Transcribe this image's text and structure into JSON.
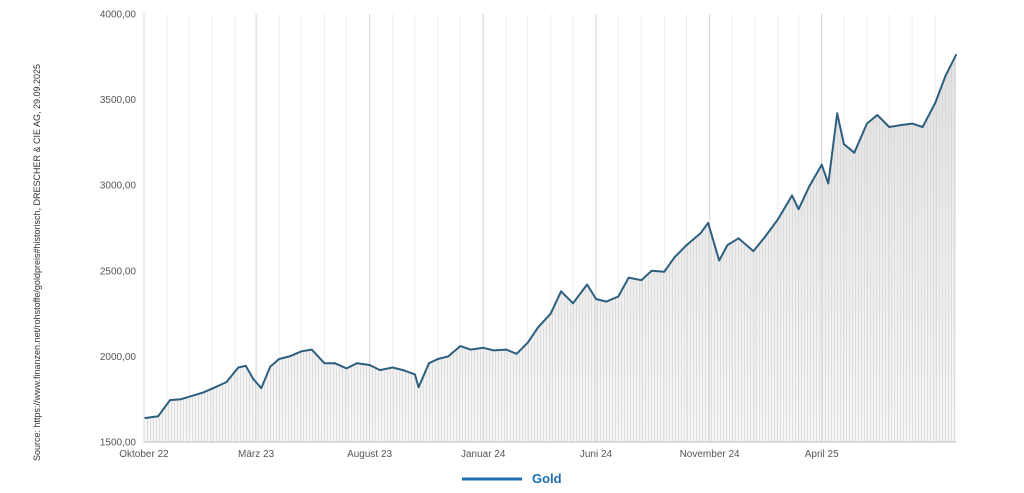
{
  "source_text": "Source: https://www.finanzen.net/rohstoffe/goldpreis#historisch, DRESCHER & CIE AG, 29.09.2025",
  "chart_data": {
    "type": "area",
    "x_start": "2022-10-01",
    "x_end": "2025-09-29",
    "ylim": [
      1500,
      4000
    ],
    "y_ticks": [
      {
        "value": 1500,
        "label": "1500,00"
      },
      {
        "value": 2000,
        "label": "2000,00"
      },
      {
        "value": 2500,
        "label": "2500,00"
      },
      {
        "value": 3000,
        "label": "3000,00"
      },
      {
        "value": 3500,
        "label": "3500,00"
      },
      {
        "value": 4000,
        "label": "4000,00"
      }
    ],
    "x_ticks": [
      {
        "date": "2022-10-01",
        "label": "Oktober 22"
      },
      {
        "date": "2023-03-01",
        "label": "März 23"
      },
      {
        "date": "2023-08-01",
        "label": "August 23"
      },
      {
        "date": "2024-01-01",
        "label": "Januar 24"
      },
      {
        "date": "2024-06-01",
        "label": "Juni 24"
      },
      {
        "date": "2024-11-01",
        "label": "November 24"
      },
      {
        "date": "2025-04-01",
        "label": "April 25"
      }
    ],
    "series": [
      {
        "name": "Gold",
        "color": "#2d5f7f",
        "points": [
          [
            "2022-10-03",
            1640
          ],
          [
            "2022-10-20",
            1650
          ],
          [
            "2022-11-05",
            1745
          ],
          [
            "2022-11-20",
            1750
          ],
          [
            "2022-12-05",
            1770
          ],
          [
            "2022-12-20",
            1790
          ],
          [
            "2023-01-05",
            1820
          ],
          [
            "2023-01-20",
            1850
          ],
          [
            "2023-02-05",
            1935
          ],
          [
            "2023-02-15",
            1945
          ],
          [
            "2023-02-25",
            1870
          ],
          [
            "2023-03-08",
            1815
          ],
          [
            "2023-03-20",
            1940
          ],
          [
            "2023-04-01",
            1985
          ],
          [
            "2023-04-15",
            2000
          ],
          [
            "2023-05-01",
            2030
          ],
          [
            "2023-05-15",
            2040
          ],
          [
            "2023-06-01",
            1960
          ],
          [
            "2023-06-15",
            1960
          ],
          [
            "2023-07-01",
            1930
          ],
          [
            "2023-07-15",
            1960
          ],
          [
            "2023-08-01",
            1950
          ],
          [
            "2023-08-15",
            1920
          ],
          [
            "2023-09-01",
            1935
          ],
          [
            "2023-09-15",
            1920
          ],
          [
            "2023-10-01",
            1895
          ],
          [
            "2023-10-06",
            1820
          ],
          [
            "2023-10-20",
            1960
          ],
          [
            "2023-11-01",
            1985
          ],
          [
            "2023-11-15",
            2000
          ],
          [
            "2023-12-01",
            2060
          ],
          [
            "2023-12-15",
            2040
          ],
          [
            "2024-01-01",
            2050
          ],
          [
            "2024-01-15",
            2035
          ],
          [
            "2024-02-01",
            2040
          ],
          [
            "2024-02-15",
            2015
          ],
          [
            "2024-03-01",
            2080
          ],
          [
            "2024-03-15",
            2170
          ],
          [
            "2024-04-01",
            2250
          ],
          [
            "2024-04-15",
            2380
          ],
          [
            "2024-05-01",
            2310
          ],
          [
            "2024-05-20",
            2420
          ],
          [
            "2024-06-01",
            2335
          ],
          [
            "2024-06-15",
            2320
          ],
          [
            "2024-07-01",
            2350
          ],
          [
            "2024-07-15",
            2460
          ],
          [
            "2024-08-01",
            2445
          ],
          [
            "2024-08-15",
            2500
          ],
          [
            "2024-09-01",
            2495
          ],
          [
            "2024-09-15",
            2580
          ],
          [
            "2024-10-01",
            2650
          ],
          [
            "2024-10-20",
            2720
          ],
          [
            "2024-10-30",
            2780
          ],
          [
            "2024-11-14",
            2560
          ],
          [
            "2024-11-25",
            2650
          ],
          [
            "2024-12-10",
            2690
          ],
          [
            "2024-12-30",
            2615
          ],
          [
            "2025-01-15",
            2700
          ],
          [
            "2025-02-01",
            2800
          ],
          [
            "2025-02-20",
            2940
          ],
          [
            "2025-03-01",
            2860
          ],
          [
            "2025-03-15",
            2990
          ],
          [
            "2025-04-01",
            3120
          ],
          [
            "2025-04-10",
            3010
          ],
          [
            "2025-04-22",
            3420
          ],
          [
            "2025-05-01",
            3240
          ],
          [
            "2025-05-15",
            3190
          ],
          [
            "2025-06-01",
            3360
          ],
          [
            "2025-06-15",
            3410
          ],
          [
            "2025-07-01",
            3340
          ],
          [
            "2025-07-15",
            3350
          ],
          [
            "2025-08-01",
            3360
          ],
          [
            "2025-08-15",
            3340
          ],
          [
            "2025-09-01",
            3480
          ],
          [
            "2025-09-15",
            3640
          ],
          [
            "2025-09-29",
            3760
          ]
        ]
      }
    ]
  }
}
